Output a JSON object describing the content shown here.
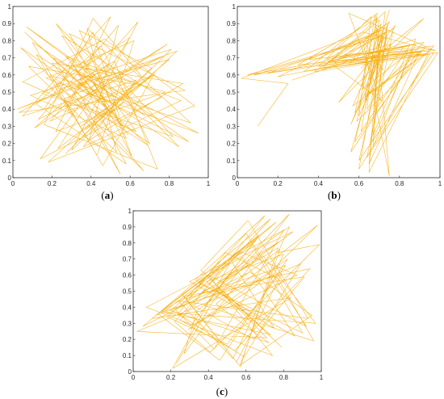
{
  "colors": {
    "trace": "#f5a800",
    "axis": "#262626"
  },
  "chart_data": [
    {
      "type": "line",
      "panel_label": "a",
      "title": "",
      "xlabel": "",
      "ylabel": "",
      "xlim": [
        0,
        1
      ],
      "ylim": [
        0,
        1
      ],
      "x_ticks": [
        "0",
        "0.2",
        "0.4",
        "0.6",
        "0.8",
        "1"
      ],
      "y_ticks": [
        "0",
        "0.1",
        "0.2",
        "0.3",
        "0.4",
        "0.5",
        "0.6",
        "0.7",
        "0.8",
        "0.9",
        "1"
      ],
      "grid": false,
      "x": [
        0.31,
        0.12,
        0.85,
        0.22,
        0.63,
        0.05,
        0.47,
        0.93,
        0.18,
        0.71,
        0.34,
        0.58,
        0.09,
        0.81,
        0.27,
        0.66,
        0.41,
        0.16,
        0.74,
        0.52,
        0.03,
        0.88,
        0.29,
        0.61,
        0.44,
        0.11,
        0.79,
        0.36,
        0.55,
        0.21,
        0.68,
        0.07,
        0.9,
        0.33,
        0.49,
        0.14,
        0.76,
        0.25,
        0.59,
        0.4,
        0.02,
        0.84,
        0.3,
        0.64,
        0.19,
        0.72,
        0.46,
        0.1,
        0.57,
        0.37,
        0.8,
        0.24,
        0.69,
        0.06,
        0.51,
        0.32,
        0.95,
        0.17,
        0.62,
        0.43,
        0.26,
        0.77,
        0.13,
        0.54,
        0.39,
        0.87,
        0.2,
        0.67,
        0.04,
        0.48,
        0.35,
        0.73,
        0.23,
        0.6,
        0.15,
        0.82,
        0.42,
        0.28,
        0.65,
        0.08,
        0.53,
        0.38,
        0.91,
        0.19,
        0.7,
        0.45,
        0.12,
        0.58,
        0.31,
        0.78,
        0.22,
        0.5,
        0.05,
        0.63,
        0.36,
        0.86,
        0.27,
        0.56,
        0.41,
        0.16
      ],
      "y": [
        0.35,
        0.72,
        0.18,
        0.9,
        0.27,
        0.56,
        0.81,
        0.42,
        0.09,
        0.64,
        0.86,
        0.23,
        0.48,
        0.75,
        0.14,
        0.59,
        0.93,
        0.31,
        0.05,
        0.68,
        0.38,
        0.51,
        0.84,
        0.12,
        0.62,
        0.29,
        0.78,
        0.45,
        0.02,
        0.7,
        0.36,
        0.88,
        0.21,
        0.53,
        0.66,
        0.11,
        0.47,
        0.83,
        0.25,
        0.57,
        0.4,
        0.74,
        0.16,
        0.91,
        0.33,
        0.6,
        0.07,
        0.79,
        0.44,
        0.28,
        0.69,
        0.52,
        0.19,
        0.85,
        0.37,
        0.63,
        0.26,
        0.58,
        0.8,
        0.13,
        0.46,
        0.71,
        0.34,
        0.89,
        0.22,
        0.55,
        0.67,
        0.04,
        0.76,
        0.41,
        0.3,
        0.61,
        0.17,
        0.82,
        0.49,
        0.24,
        0.73,
        0.39,
        0.54,
        0.65,
        0.15,
        0.87,
        0.32,
        0.6,
        0.2,
        0.77,
        0.43,
        0.08,
        0.66,
        0.5,
        0.27,
        0.94,
        0.36,
        0.57,
        0.18,
        0.45,
        0.71,
        0.3,
        0.85,
        0.4
      ]
    },
    {
      "type": "line",
      "panel_label": "b",
      "title": "",
      "xlabel": "",
      "ylabel": "",
      "xlim": [
        0,
        1
      ],
      "ylim": [
        0,
        1
      ],
      "x_ticks": [
        "0",
        "0.2",
        "0.4",
        "0.6",
        "0.8",
        "1"
      ],
      "y_ticks": [
        "0",
        "0.1",
        "0.2",
        "0.3",
        "0.4",
        "0.5",
        "0.6",
        "0.7",
        "0.8",
        "0.9",
        "1"
      ],
      "grid": false,
      "x": [
        0.1,
        0.25,
        0.02,
        0.62,
        0.98,
        0.55,
        0.71,
        0.45,
        0.88,
        0.66,
        0.74,
        0.38,
        0.95,
        0.6,
        0.72,
        0.05,
        0.82,
        0.58,
        0.69,
        0.3,
        0.99,
        0.64,
        0.77,
        0.5,
        0.92,
        0.68,
        0.73,
        0.42,
        0.86,
        0.61,
        0.7,
        0.15,
        0.96,
        0.57,
        0.75,
        0.48,
        0.9,
        0.65,
        0.71,
        0.35,
        0.97,
        0.59,
        0.68,
        0.75,
        0.62,
        0.72,
        0.53,
        0.84,
        0.67,
        0.74,
        0.2,
        0.93,
        0.63,
        0.7,
        0.46,
        0.89,
        0.56,
        0.73,
        0.52,
        0.76,
        0.6,
        0.66,
        0.4,
        0.94,
        0.65,
        0.7,
        0.08,
        0.87,
        0.62,
        0.71,
        0.55,
        0.91,
        0.58,
        0.72,
        0.44,
        0.85,
        0.64,
        0.69,
        0.33,
        0.97,
        0.6,
        0.74,
        0.66,
        0.71,
        0.56,
        0.78,
        0.62,
        0.68,
        0.5,
        0.92,
        0.61,
        0.73,
        0.27,
        0.88,
        0.67,
        0.7,
        0.59,
        0.95,
        0.63,
        0.75
      ],
      "y": [
        0.3,
        0.55,
        0.58,
        0.85,
        0.74,
        0.96,
        0.45,
        0.68,
        0.78,
        0.2,
        0.9,
        0.62,
        0.72,
        0.05,
        0.83,
        0.6,
        0.76,
        0.38,
        0.93,
        0.66,
        0.73,
        0.12,
        0.87,
        0.7,
        0.79,
        0.5,
        0.97,
        0.64,
        0.71,
        0.27,
        0.84,
        0.61,
        0.75,
        0.42,
        0.91,
        0.67,
        0.74,
        0.08,
        0.86,
        0.69,
        0.77,
        0.33,
        0.95,
        0.01,
        0.8,
        0.63,
        0.72,
        0.74,
        0.25,
        0.88,
        0.59,
        0.76,
        0.47,
        0.92,
        0.68,
        0.73,
        0.15,
        0.85,
        0.7,
        0.78,
        0.36,
        0.94,
        0.65,
        0.72,
        0.03,
        0.82,
        0.6,
        0.75,
        0.52,
        0.9,
        0.66,
        0.74,
        0.21,
        0.87,
        0.69,
        0.77,
        0.4,
        0.96,
        0.62,
        0.73,
        0.1,
        0.83,
        0.58,
        0.76,
        0.31,
        0.89,
        0.67,
        0.72,
        0.44,
        0.93,
        0.64,
        0.75,
        0.57,
        0.81,
        0.18,
        0.86,
        0.7,
        0.74,
        0.48,
        0.98
      ]
    },
    {
      "type": "line",
      "panel_label": "c",
      "title": "",
      "xlabel": "",
      "ylabel": "",
      "xlim": [
        0,
        1
      ],
      "ylim": [
        0,
        1
      ],
      "x_ticks": [
        "0",
        "0.2",
        "0.4",
        "0.6",
        "0.8",
        "1"
      ],
      "y_ticks": [
        "0",
        "0.1",
        "0.2",
        "0.3",
        "0.4",
        "0.5",
        "0.6",
        "0.7",
        "0.8",
        "0.9",
        "1"
      ],
      "grid": false,
      "x": [
        0.23,
        0.42,
        0.68,
        0.83,
        0.77,
        0.99,
        0.41,
        0.22,
        0.73,
        0.05,
        0.62,
        0.95,
        0.57,
        0.78,
        0.34,
        0.27,
        0.83,
        0.45,
        0.71,
        0.02,
        0.89,
        0.59,
        0.24,
        0.49,
        0.77,
        0.96,
        0.38,
        0.66,
        0.1,
        0.84,
        0.21,
        0.52,
        0.75,
        0.3,
        0.8,
        0.43,
        0.22,
        0.69,
        0.97,
        0.15,
        0.79,
        0.55,
        0.26,
        0.63,
        0.9,
        0.35,
        0.76,
        0.18,
        0.5,
        0.81,
        0.28,
        0.6,
        0.92,
        0.4,
        0.74,
        0.07,
        0.58,
        0.86,
        0.33,
        0.7,
        0.25,
        0.54,
        0.94,
        0.37,
        0.78,
        0.13,
        0.46,
        0.82,
        0.29,
        0.65,
        0.98,
        0.44,
        0.72,
        0.2,
        0.56,
        0.87,
        0.31,
        0.67,
        0.12,
        0.48,
        0.79,
        0.36,
        0.61,
        0.93,
        0.24,
        0.53,
        0.8,
        0.39,
        0.73,
        0.16,
        0.51,
        0.85,
        0.32,
        0.64,
        0.91,
        0.27,
        0.57,
        0.77,
        0.42,
        0.7
      ],
      "y": [
        0.05,
        0.43,
        0.78,
        0.9,
        0.74,
        0.79,
        0.12,
        0.31,
        0.95,
        0.28,
        0.62,
        0.35,
        0.04,
        0.76,
        0.38,
        0.11,
        0.98,
        0.52,
        0.21,
        0.25,
        0.67,
        0.09,
        0.36,
        0.74,
        0.58,
        0.19,
        0.41,
        0.83,
        0.33,
        0.46,
        0.02,
        0.69,
        0.27,
        0.56,
        0.88,
        0.14,
        0.39,
        0.72,
        0.3,
        0.37,
        0.61,
        0.06,
        0.48,
        0.79,
        0.24,
        0.55,
        0.93,
        0.34,
        0.17,
        0.66,
        0.45,
        0.86,
        0.28,
        0.6,
        0.1,
        0.4,
        0.71,
        0.22,
        0.57,
        0.97,
        0.32,
        0.13,
        0.64,
        0.49,
        0.81,
        0.36,
        0.07,
        0.7,
        0.26,
        0.53,
        0.91,
        0.42,
        0.18,
        0.38,
        0.75,
        0.6,
        0.29,
        0.85,
        0.35,
        0.5,
        0.15,
        0.63,
        0.94,
        0.33,
        0.44,
        0.08,
        0.73,
        0.56,
        0.23,
        0.37,
        0.68,
        0.87,
        0.41,
        0.2,
        0.59,
        0.47,
        0.03,
        0.77,
        0.52,
        0.31
      ]
    }
  ]
}
